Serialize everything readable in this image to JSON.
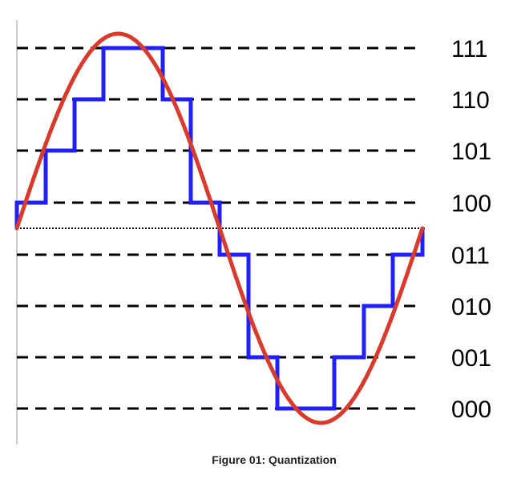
{
  "figure": {
    "caption": "Figure 01: Quantization",
    "levels": [
      "111",
      "110",
      "101",
      "100",
      "011",
      "010",
      "001",
      "000"
    ],
    "colors": {
      "signal": "#d93a2b",
      "quantized": "#1f1fff",
      "threshold": "#000000",
      "axis": "#bbbbbb"
    }
  }
}
